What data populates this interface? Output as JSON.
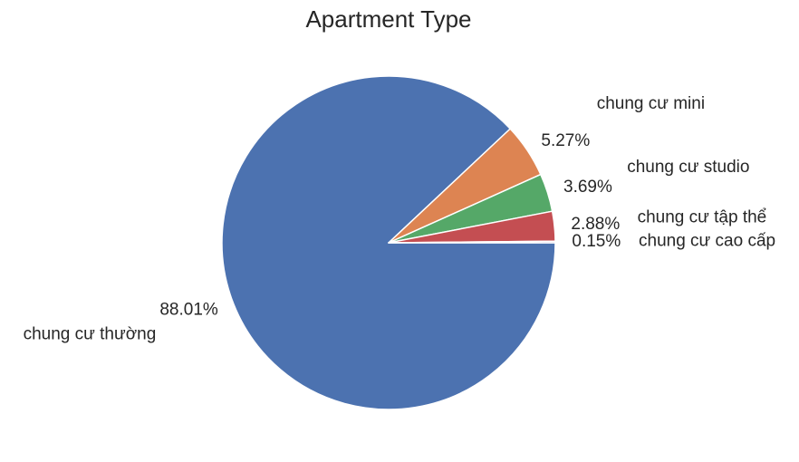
{
  "chart_data": {
    "type": "pie",
    "title": "Apartment Type",
    "categories": [
      "chung cư thường",
      "chung cư mini",
      "chung cư studio",
      "chung cư tập thể",
      "chung cư cao cấp"
    ],
    "values": [
      88.01,
      5.27,
      3.69,
      2.88,
      0.15
    ],
    "value_labels": [
      "88.01%",
      "5.27%",
      "3.69%",
      "2.88%",
      "0.15%"
    ],
    "colors": [
      "#4c72b0",
      "#dd8452",
      "#55a868",
      "#c44e52",
      "#8172b3"
    ],
    "start_angle_deg": 0,
    "direction": "clockwise",
    "legend": "none"
  }
}
